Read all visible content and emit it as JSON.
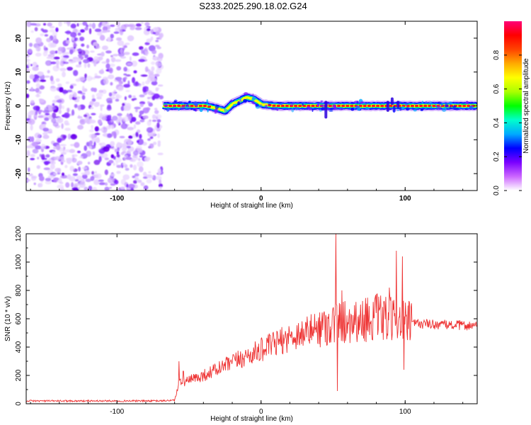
{
  "title": "S233.2025.290.18.02.G24",
  "chart_data": [
    {
      "type": "heatmap",
      "name": "spectrogram",
      "xlabel": "Height of straight line (km)",
      "ylabel": "Frequency (Hz)",
      "xlim": [
        -163,
        150
      ],
      "ylim": [
        -25,
        25
      ],
      "xticks": [
        -100,
        0,
        100
      ],
      "yticks": [
        -20,
        -10,
        0,
        10,
        20
      ],
      "noise_region": [
        -163,
        -69
      ],
      "ridge": {
        "start": -68,
        "end": 150,
        "path": [
          [
            -68,
            0
          ],
          [
            -50,
            0
          ],
          [
            -38,
            0
          ],
          [
            -30,
            -0.8
          ],
          [
            -25,
            -1.5
          ],
          [
            -20,
            0.5
          ],
          [
            -15,
            1.5
          ],
          [
            -10,
            2.5
          ],
          [
            -5,
            2.0
          ],
          [
            0,
            0.5
          ],
          [
            10,
            0
          ],
          [
            50,
            0
          ],
          [
            100,
            0
          ],
          [
            150,
            0
          ]
        ]
      },
      "colorbar": {
        "label": "Normalized spectral amplitude",
        "ticks": [
          0.0,
          0.2,
          0.4,
          0.6,
          0.8
        ],
        "colors": [
          "#ffffff",
          "#cc66ff",
          "#7a00ff",
          "#0000ff",
          "#00aaff",
          "#00ffcc",
          "#00ff00",
          "#aaff00",
          "#ffff00",
          "#ffaa00",
          "#ff4400",
          "#ff0000",
          "#ff0077"
        ]
      }
    },
    {
      "type": "line",
      "name": "snr",
      "xlabel": "Height of straight line (km)",
      "ylabel": "SNR (10 * v/v)",
      "xlim": [
        -163,
        150
      ],
      "ylim": [
        0,
        1200
      ],
      "xticks": [
        -100,
        0,
        100
      ],
      "yticks": [
        0,
        200,
        400,
        600,
        800,
        1000,
        1200
      ],
      "color": "#ee3333",
      "envelope": {
        "x": [
          -163,
          -70,
          -60,
          -57,
          -40,
          -20,
          0,
          20,
          40,
          55,
          80,
          100,
          120,
          150
        ],
        "y": [
          20,
          20,
          25,
          140,
          200,
          290,
          380,
          470,
          540,
          580,
          610,
          570,
          560,
          550
        ]
      },
      "spikes": [
        {
          "x": -57,
          "y": 300
        },
        {
          "x": -54,
          "y": 230
        },
        {
          "x": 52,
          "y": 1200
        },
        {
          "x": 53,
          "y": 90
        },
        {
          "x": 56,
          "y": 800
        },
        {
          "x": 69,
          "y": 700
        },
        {
          "x": 89,
          "y": 820
        },
        {
          "x": 94,
          "y": 1080
        },
        {
          "x": 98,
          "y": 1040
        },
        {
          "x": 99,
          "y": 240
        }
      ]
    }
  ]
}
